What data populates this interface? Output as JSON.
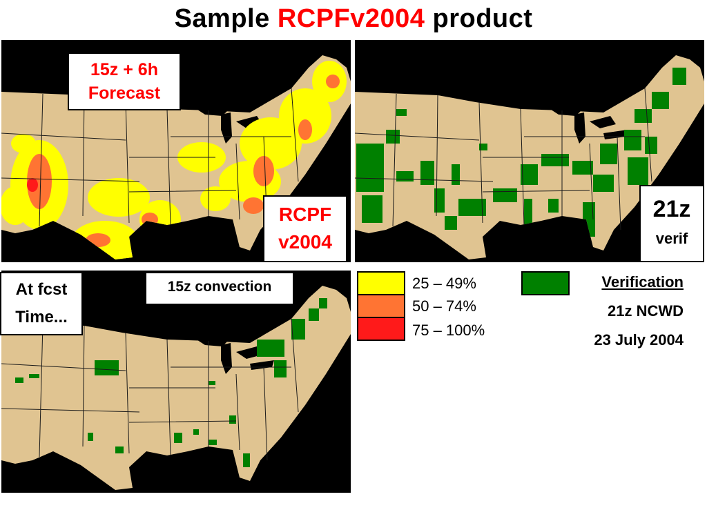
{
  "title": {
    "prefix": "Sample ",
    "accent": "RCPFv2004",
    "suffix": " product"
  },
  "colors": {
    "land": "#e0c491",
    "water": "#000000",
    "border": "#1a1a1a",
    "prob_25_49": "#ffff00",
    "prob_50_74": "#ff7433",
    "prob_75_100": "#ff1a1a",
    "verification": "#008000",
    "label_red": "#ff0000"
  },
  "panels": {
    "forecast": {
      "label_line1": "15z + 6h",
      "label_line2": "Forecast",
      "product_line1": "RCPF",
      "product_line2": "v2004"
    },
    "verification": {
      "time_label": "21z",
      "verif_label": "verif"
    },
    "initial": {
      "at_fcst_line1": "At fcst",
      "at_fcst_line2": "Time...",
      "convection_label": "15z convection"
    }
  },
  "legend": {
    "items": [
      {
        "label": "25 – 49%",
        "color_key": "prob_25_49"
      },
      {
        "label": "50 – 74%",
        "color_key": "prob_50_74"
      },
      {
        "label": "75 – 100%",
        "color_key": "prob_75_100"
      }
    ],
    "verification_title": "Verification",
    "verification_source": "21z NCWD",
    "verification_date": "23 July 2004"
  }
}
